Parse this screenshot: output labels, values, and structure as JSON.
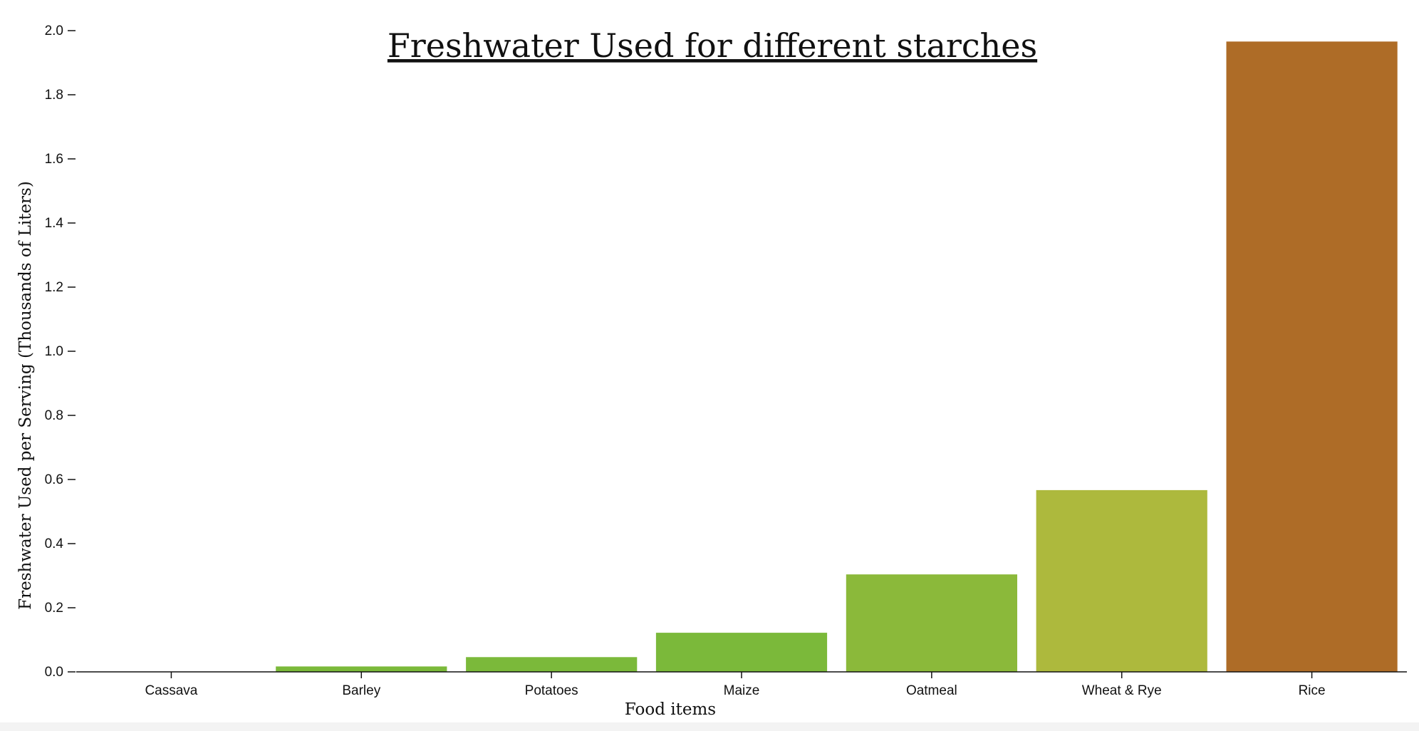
{
  "chart_data": {
    "type": "bar",
    "title": "Freshwater Used for different starches",
    "xlabel": "Food items",
    "ylabel": "Freshwater Used per Serving (Thousands of Liters)",
    "categories": [
      "Cassava",
      "Barley",
      "Potatoes",
      "Maize",
      "Oatmeal",
      "Wheat & Rye",
      "Rice"
    ],
    "values": [
      0.0,
      0.017,
      0.046,
      0.122,
      0.304,
      0.567,
      1.966
    ],
    "colors": [
      "#7bb93a",
      "#7bb93a",
      "#7bb93a",
      "#7bb93a",
      "#8bb93a",
      "#adb93d",
      "#ae6c27"
    ],
    "ylim": [
      0,
      2.0
    ],
    "yticks": [
      "0.0",
      "0.2",
      "0.4",
      "0.6",
      "0.8",
      "1.0",
      "1.2",
      "1.4",
      "1.6",
      "1.8",
      "2.0"
    ],
    "grid": false
  }
}
